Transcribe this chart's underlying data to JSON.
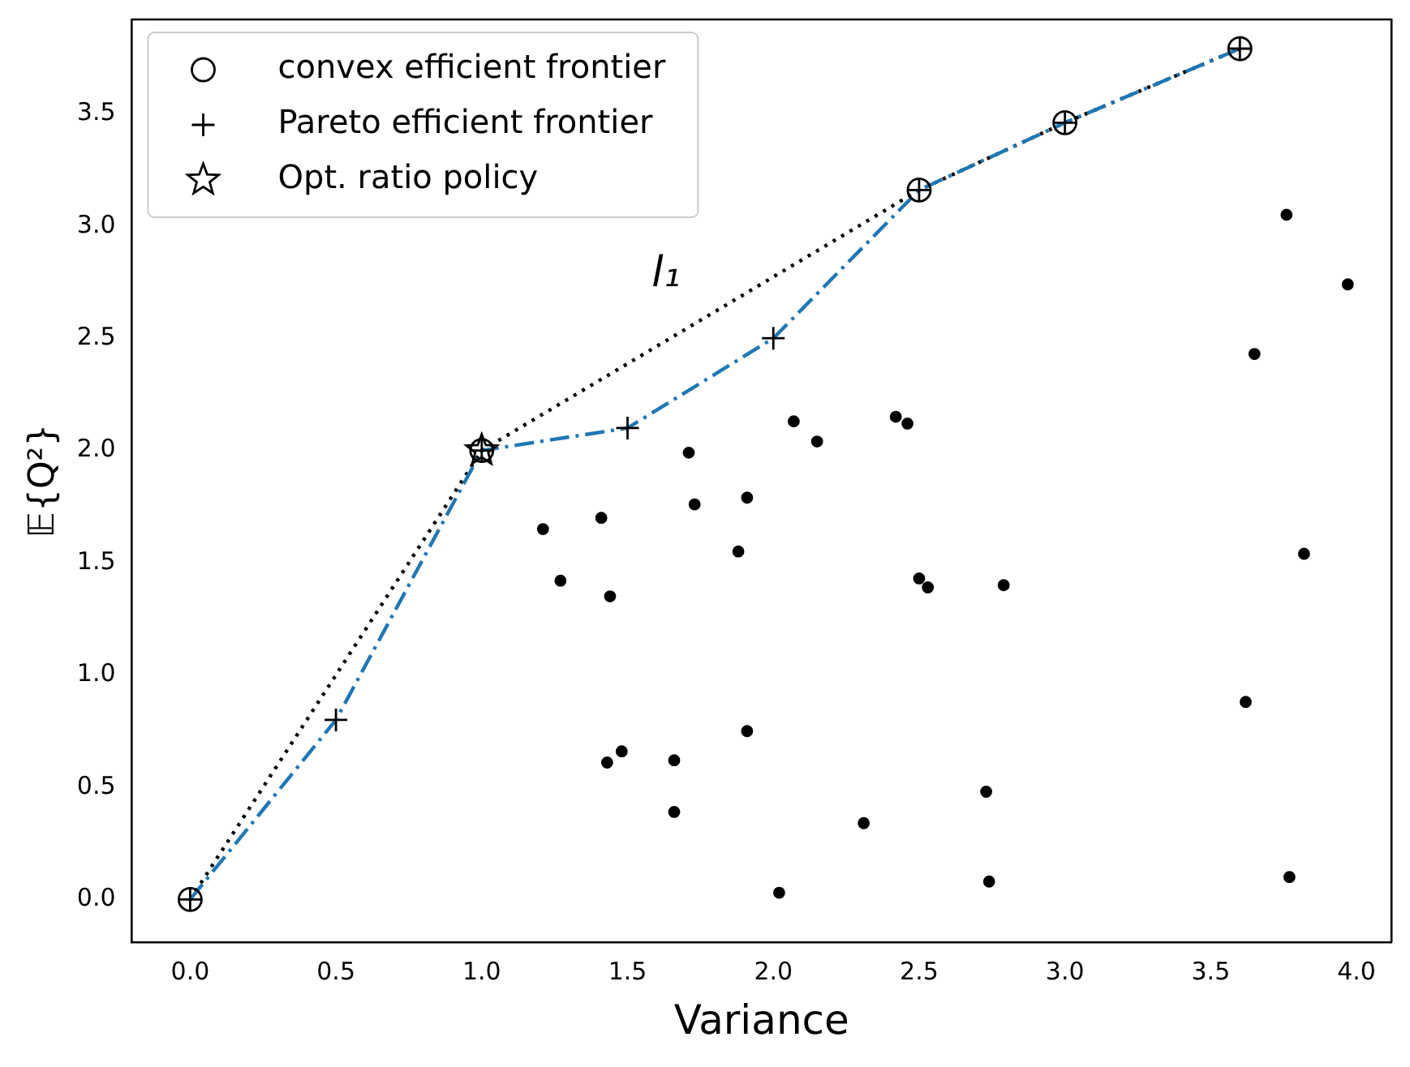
{
  "chart_data": {
    "type": "scatter",
    "xlabel": "Variance",
    "ylabel": "𝔼{Q²}",
    "xlim": [
      -0.2,
      4.12
    ],
    "ylim": [
      -0.19,
      3.92
    ],
    "xticks": [
      {
        "value": 0,
        "label": "0.0"
      },
      {
        "value": 0.5,
        "label": "0.5"
      },
      {
        "value": 1,
        "label": "1.0"
      },
      {
        "value": 1.5,
        "label": "1.5"
      },
      {
        "value": 2,
        "label": "2.0"
      },
      {
        "value": 2.5,
        "label": "2.5"
      },
      {
        "value": 3,
        "label": "3.0"
      },
      {
        "value": 3.5,
        "label": "3.5"
      },
      {
        "value": 4,
        "label": "4.0"
      }
    ],
    "yticks": [
      {
        "value": 0,
        "label": "0.0"
      },
      {
        "value": 0.5,
        "label": "0.5"
      },
      {
        "value": 1,
        "label": "1.0"
      },
      {
        "value": 1.5,
        "label": "1.5"
      },
      {
        "value": 2,
        "label": "2.0"
      },
      {
        "value": 2.5,
        "label": "2.5"
      },
      {
        "value": 3,
        "label": "3.0"
      },
      {
        "value": 3.5,
        "label": "3.5"
      }
    ],
    "grid": false,
    "legend": "top left",
    "annotations": [
      "l₁"
    ],
    "series": [
      {
        "type": "scatter",
        "color": "#000000",
        "marker": "circle",
        "x": [
          3.76,
          3.97,
          3.65,
          3.82,
          3.62,
          3.77,
          2.07,
          2.15,
          2.42,
          2.46,
          1.71,
          1.21,
          1.41,
          1.73,
          1.91,
          1.88,
          1.27,
          1.44,
          2.5,
          2.53,
          2.79,
          1.43,
          1.48,
          1.66,
          1.66,
          1.91,
          2.31,
          2.02,
          2.73,
          2.74
        ],
        "values": [
          3.05,
          2.74,
          2.43,
          1.54,
          0.88,
          0.1,
          2.13,
          2.04,
          2.15,
          2.12,
          1.99,
          1.65,
          1.7,
          1.76,
          1.79,
          1.55,
          1.42,
          1.35,
          1.43,
          1.39,
          1.4,
          0.61,
          0.66,
          0.62,
          0.39,
          0.75,
          0.34,
          0.03,
          0.48,
          0.08
        ]
      },
      {
        "type": "line",
        "color": "#000000",
        "line_style": "dotted",
        "marker": "none",
        "x": [
          0,
          1,
          2.5,
          3,
          3.6
        ],
        "values": [
          0,
          2,
          3.16,
          3.46,
          3.79
        ]
      },
      {
        "type": "line",
        "color": "#1f77b4",
        "line_style": "dashed",
        "marker": "none",
        "x": [
          0,
          0.5,
          1,
          1.5,
          2,
          2.5,
          3,
          3.6
        ],
        "values": [
          0,
          0.8,
          2,
          2.1,
          2.5,
          3.16,
          3.46,
          3.79
        ]
      },
      {
        "type": "scatter",
        "name": "convex efficient frontier",
        "color": "#000000",
        "marker": "circle",
        "x": [
          0,
          1,
          2.5,
          3,
          3.6
        ],
        "values": [
          0,
          2,
          3.16,
          3.46,
          3.79
        ]
      },
      {
        "type": "scatter",
        "name": "Pareto efficient frontier",
        "color": "#000000",
        "marker": "cross",
        "x": [
          0,
          0.5,
          1,
          1.5,
          2,
          2.5,
          3,
          3.6
        ],
        "values": [
          0,
          0.8,
          2,
          2.1,
          2.5,
          3.16,
          3.46,
          3.79
        ]
      },
      {
        "type": "scatter",
        "name": "Opt. ratio policy",
        "color": "#000000",
        "marker": "star",
        "x": [
          1
        ],
        "values": [
          2
        ]
      }
    ]
  }
}
